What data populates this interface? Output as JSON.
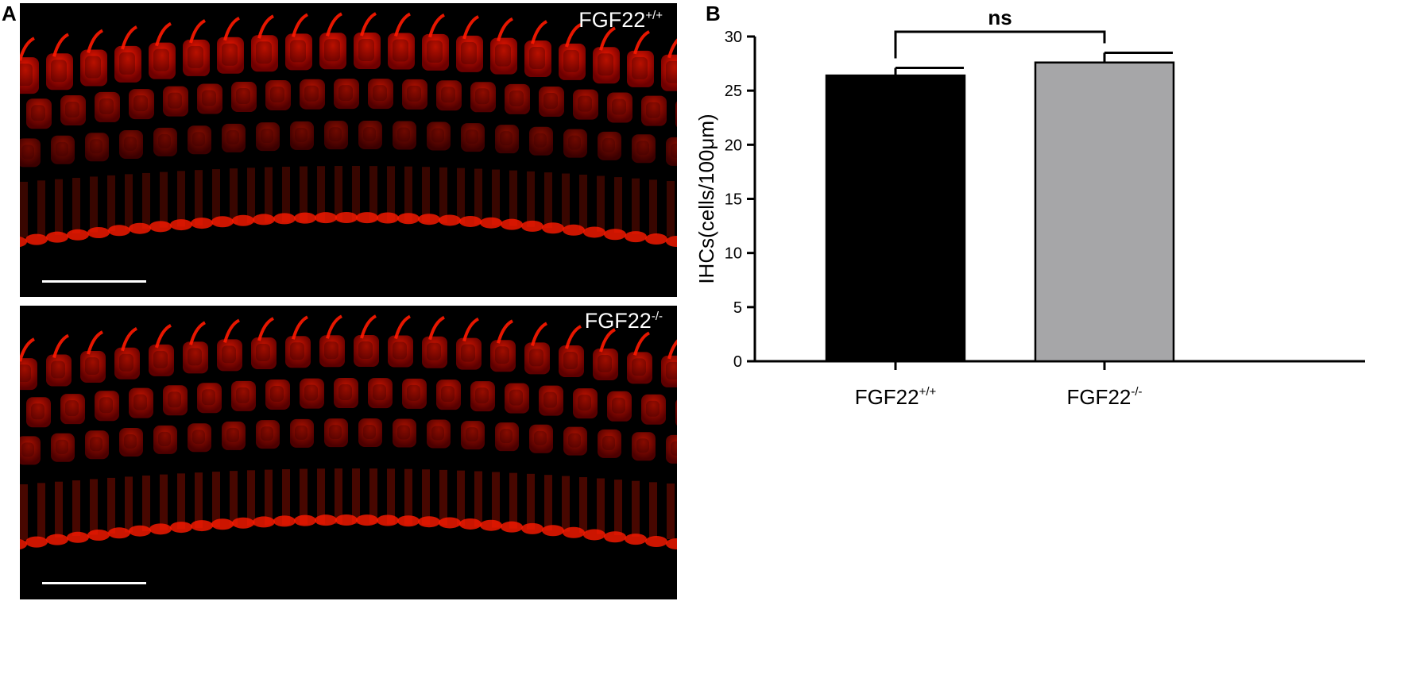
{
  "figure": {
    "panel_a_letter": "A",
    "panel_b_letter": "B",
    "micrographs": [
      {
        "label_base": "FGF22",
        "label_sup": "+/+",
        "fluorescence_color": "#ff1a00"
      },
      {
        "label_base": "FGF22",
        "label_sup": "-/-",
        "fluorescence_color": "#ff1a00"
      }
    ]
  },
  "chart_data": {
    "type": "bar",
    "categories": [
      {
        "base": "FGF22",
        "sup": "+/+"
      },
      {
        "base": "FGF22",
        "sup": "-/-"
      }
    ],
    "values": [
      26.4,
      27.6
    ],
    "errors": [
      0.7,
      0.9
    ],
    "bar_colors": [
      "#000000",
      "#a6a6a8"
    ],
    "ylabel": "IHCs(cells/100μm)",
    "ylim": [
      0,
      30
    ],
    "yticks": [
      0,
      5,
      10,
      15,
      20,
      25,
      30
    ],
    "significance": "ns",
    "grid": false
  }
}
